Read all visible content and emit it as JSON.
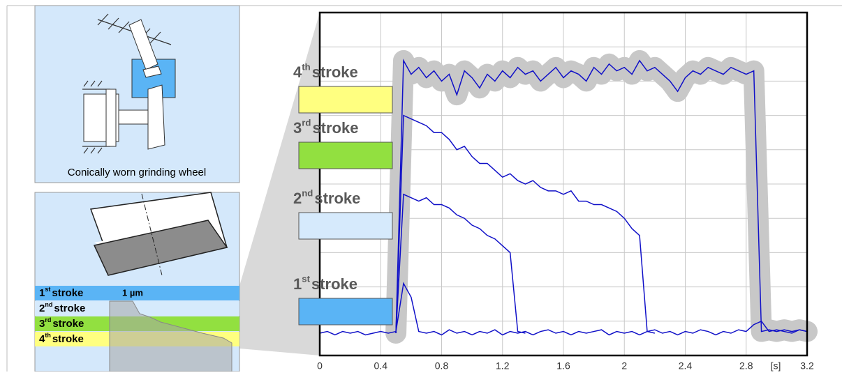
{
  "wheel_panel": {
    "caption": "Conically worn grinding wheel"
  },
  "wear_panel": {
    "depth_label": "1 µm",
    "strokes": [
      {
        "ordinal": "1",
        "suffix": "st",
        "word": "stroke",
        "color": "#5ab4f5"
      },
      {
        "ordinal": "2",
        "suffix": "nd",
        "word": "stroke",
        "color": "#d6eafc"
      },
      {
        "ordinal": "3",
        "suffix": "rd",
        "word": "stroke",
        "color": "#92e040"
      },
      {
        "ordinal": "4",
        "suffix": "th",
        "word": "stroke",
        "color": "#ffff80"
      }
    ]
  },
  "chart_data": {
    "type": "line",
    "x": [
      0,
      0.05,
      0.1,
      0.15,
      0.2,
      0.25,
      0.3,
      0.35,
      0.4,
      0.45,
      0.5,
      0.55,
      0.6,
      0.65,
      0.7,
      0.75,
      0.8,
      0.85,
      0.9,
      0.95,
      1.0,
      1.05,
      1.1,
      1.15,
      1.2,
      1.25,
      1.3,
      1.35,
      1.4,
      1.45,
      1.5,
      1.55,
      1.6,
      1.65,
      1.7,
      1.75,
      1.8,
      1.85,
      1.9,
      1.95,
      2.0,
      2.05,
      2.1,
      2.15,
      2.2,
      2.25,
      2.3,
      2.35,
      2.4,
      2.45,
      2.5,
      2.55,
      2.6,
      2.65,
      2.7,
      2.75,
      2.8,
      2.85,
      2.9,
      2.95,
      3.0,
      3.05,
      3.1,
      3.15,
      3.2
    ],
    "xlim": [
      0,
      3.2
    ],
    "xticks": [
      0,
      0.4,
      0.8,
      1.2,
      1.6,
      2.0,
      2.4,
      2.8,
      3.2
    ],
    "x_unit": "[s]",
    "ylim": [
      0,
      10
    ],
    "yticks": [
      1,
      2,
      3,
      4,
      5,
      6,
      7,
      8,
      9
    ],
    "grid": true,
    "series": [
      {
        "ordinal": "1",
        "suffix": "st",
        "word": "stroke",
        "color": "#1010c8",
        "swatch": "#5ab4f5",
        "values": [
          0.65,
          0.7,
          0.6,
          0.7,
          0.65,
          0.7,
          0.6,
          0.65,
          0.7,
          0.65,
          0.7,
          2.1,
          1.7,
          0.7,
          0.65,
          0.7,
          0.6,
          0.75,
          0.65,
          0.7,
          0.6,
          0.7,
          0.65,
          0.75,
          0.6,
          0.7,
          0.65,
          0.7,
          0.6,
          0.7,
          0.75,
          0.65,
          0.7,
          0.6,
          0.7,
          0.65,
          0.7,
          0.75,
          0.6,
          0.7,
          0.65,
          0.7,
          0.6,
          0.7,
          0.75,
          0.65,
          0.7,
          0.6,
          0.7,
          0.65,
          0.75,
          0.7,
          0.6,
          0.7,
          0.65,
          0.75,
          0.7,
          0.9,
          1.0,
          0.7,
          0.75,
          0.7,
          0.65,
          0.75,
          0.7
        ]
      },
      {
        "ordinal": "2",
        "suffix": "nd",
        "word": "stroke",
        "color": "#1010c8",
        "swatch": "#d6eafc",
        "values": [
          null,
          null,
          null,
          null,
          null,
          null,
          null,
          null,
          null,
          null,
          0.65,
          4.7,
          4.6,
          4.5,
          4.6,
          4.4,
          4.4,
          4.3,
          4.1,
          4.0,
          3.8,
          3.7,
          3.5,
          3.4,
          3.2,
          3.0,
          0.7,
          0.65,
          null,
          null,
          null,
          null,
          null,
          null,
          null,
          null,
          null,
          null,
          null,
          null,
          null,
          null,
          null,
          null,
          null,
          null,
          null,
          null,
          null,
          null,
          null,
          null,
          null,
          null,
          null,
          null,
          null,
          null,
          null,
          null,
          null,
          null,
          null,
          null,
          null
        ]
      },
      {
        "ordinal": "3",
        "suffix": "rd",
        "word": "stroke",
        "color": "#1010c8",
        "swatch": "#92e040",
        "values": [
          null,
          null,
          null,
          null,
          null,
          null,
          null,
          null,
          null,
          null,
          0.65,
          7.0,
          6.9,
          6.8,
          6.7,
          6.5,
          6.5,
          6.3,
          6.0,
          6.1,
          5.8,
          5.6,
          5.6,
          5.4,
          5.2,
          5.3,
          5.1,
          5.0,
          5.1,
          4.9,
          4.8,
          4.8,
          4.7,
          4.8,
          4.5,
          4.5,
          4.4,
          4.4,
          4.3,
          4.2,
          4.0,
          3.7,
          3.5,
          0.7,
          0.65,
          null,
          null,
          null,
          null,
          null,
          null,
          null,
          null,
          null,
          null,
          null,
          null,
          null,
          null,
          null,
          null,
          null,
          null,
          null,
          null
        ]
      },
      {
        "ordinal": "4",
        "suffix": "th",
        "word": "stroke",
        "color": "#1010c8",
        "swatch": "#ffff80",
        "halo": "#c8c8c8",
        "values": [
          null,
          null,
          null,
          null,
          null,
          null,
          null,
          null,
          null,
          null,
          0.65,
          8.6,
          8.2,
          8.4,
          8.1,
          8.3,
          8.0,
          8.2,
          7.6,
          8.3,
          8.1,
          7.8,
          8.2,
          8.0,
          8.3,
          8.1,
          8.4,
          8.2,
          8.3,
          8.0,
          8.2,
          8.4,
          8.1,
          8.3,
          8.2,
          8.0,
          8.4,
          8.2,
          8.5,
          8.3,
          8.4,
          8.2,
          8.6,
          8.3,
          8.4,
          8.2,
          8.0,
          7.7,
          8.1,
          8.3,
          8.2,
          8.4,
          8.3,
          8.2,
          8.4,
          8.3,
          8.2,
          8.3,
          0.7,
          0.75,
          0.7,
          0.75,
          0.7,
          0.75,
          0.7
        ]
      }
    ]
  }
}
